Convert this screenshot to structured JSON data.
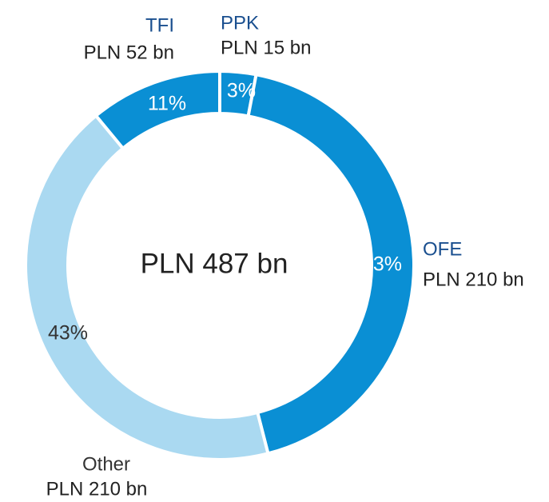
{
  "chart_data": {
    "type": "donut",
    "center_label": "PLN 487 bn",
    "categories": [
      "PPK",
      "OFE",
      "Other",
      "TFI"
    ],
    "values": [
      3,
      43,
      43,
      11
    ],
    "value_labels": [
      "3%",
      "43%",
      "43%",
      "11%"
    ],
    "amounts": [
      "PLN 15 bn",
      "PLN 210 bn",
      "PLN 210 bn",
      "PLN 52 bn"
    ],
    "colors": [
      "#0a8fd4",
      "#0a8fd4",
      "#aad9f1",
      "#0a8fd4"
    ],
    "label_colors": [
      "#1a4f8f",
      "#1a4f8f",
      "#333333",
      "#1a4f8f"
    ]
  }
}
